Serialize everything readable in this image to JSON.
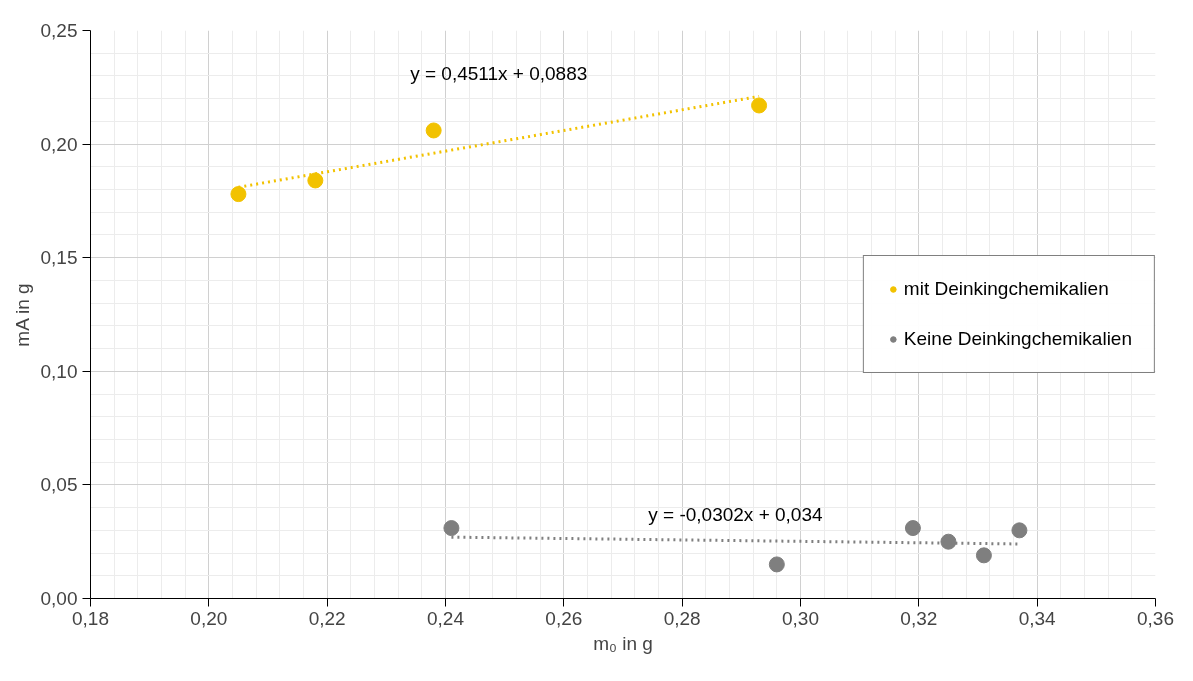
{
  "chart_data": {
    "type": "scatter",
    "xlabel": "m₀ in g",
    "ylabel": "mA in g",
    "xlim": [
      0.18,
      0.36
    ],
    "xticks": [
      {
        "value": 0.18,
        "label": "0,18"
      },
      {
        "value": 0.2,
        "label": "0,20"
      },
      {
        "value": 0.22,
        "label": "0,22"
      },
      {
        "value": 0.24,
        "label": "0,24"
      },
      {
        "value": 0.26,
        "label": "0,26"
      },
      {
        "value": 0.28,
        "label": "0,28"
      },
      {
        "value": 0.3,
        "label": "0,30"
      },
      {
        "value": 0.32,
        "label": "0,32"
      },
      {
        "value": 0.34,
        "label": "0,34"
      },
      {
        "value": 0.36,
        "label": "0,36"
      }
    ],
    "ylim": [
      0,
      0.25
    ],
    "yticks": [
      {
        "value": 0,
        "label": "0,00"
      },
      {
        "value": 0.05,
        "label": "0,05"
      },
      {
        "value": 0.1,
        "label": "0,10"
      },
      {
        "value": 0.15,
        "label": "0,15"
      },
      {
        "value": 0.2,
        "label": "0,20"
      },
      {
        "value": 0.25,
        "label": "0,25"
      }
    ],
    "grid": true,
    "legend": "right",
    "marker": "circle",
    "series": [
      {
        "name": "mit Deinkingchemikalien",
        "color": "#f2c200",
        "x": [
          0.205,
          0.218,
          0.238,
          0.293
        ],
        "values": [
          0.178,
          0.184,
          0.206,
          0.217
        ]
      },
      {
        "name": "Keine Deinkingchemikalien",
        "color": "#7f7f7f",
        "x": [
          0.241,
          0.296,
          0.319,
          0.325,
          0.331,
          0.337
        ],
        "values": [
          0.031,
          0.015,
          0.031,
          0.025,
          0.019,
          0.03
        ]
      },
      {
        "type": "line",
        "marker": "none",
        "line_style": "dotted",
        "color": "#f2c200",
        "x": [
          0.205,
          0.293
        ],
        "values": [
          0.181,
          0.221
        ]
      },
      {
        "type": "line",
        "marker": "none",
        "line_style": "dotted",
        "color": "#7f7f7f",
        "x": [
          0.241,
          0.337
        ],
        "values": [
          0.027,
          0.024
        ]
      }
    ],
    "annotations": [
      "y = 0,4511x + 0,0883",
      "y = -0,0302x + 0,034"
    ]
  }
}
